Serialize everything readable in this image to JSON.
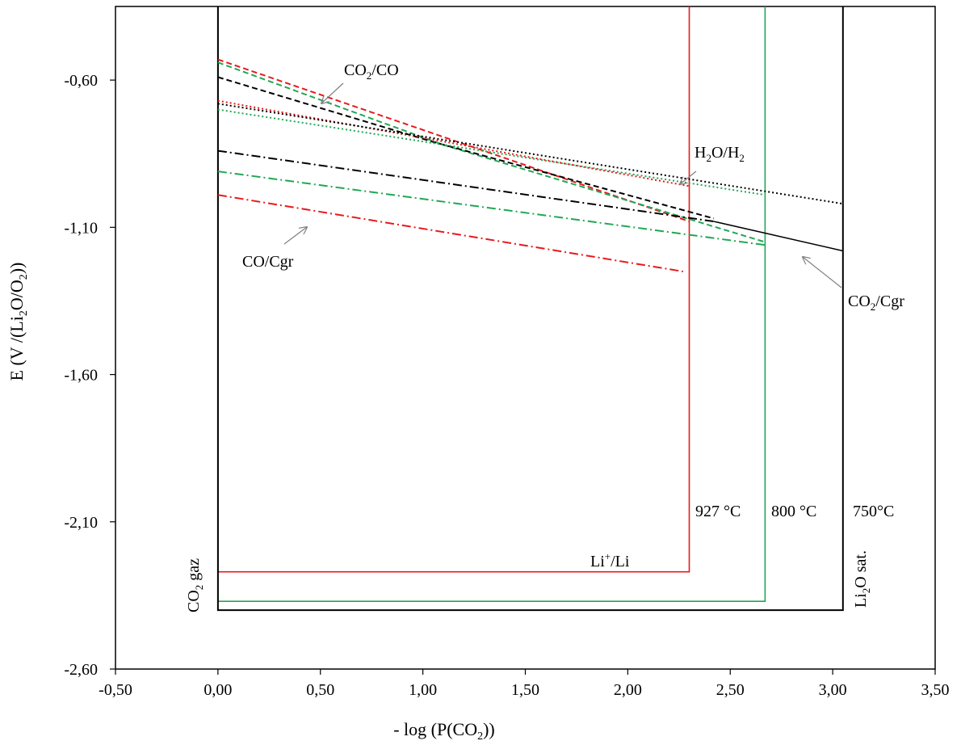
{
  "chart_data": {
    "type": "line",
    "xlabel": {
      "main": "- log (P(CO",
      "sub": "2",
      "tail": "))"
    },
    "ylabel": {
      "p1": "E  (V /(Li",
      "s1": "2",
      "p2": "O/O",
      "s2": "2",
      "p3": "))"
    },
    "xlim": [
      -0.5,
      3.5
    ],
    "ylim": [
      -2.6,
      -0.35
    ],
    "xticks": [
      "-0,50",
      "0,00",
      "0,50",
      "1,00",
      "1,50",
      "2,00",
      "2,50",
      "3,00",
      "3,50"
    ],
    "yticks": [
      "-0,60",
      "-1,10",
      "-1,60",
      "-2,10",
      "-2,60"
    ],
    "colors": {
      "t927": "#e8191c",
      "t800": "#1fa855",
      "t750": "#000000"
    },
    "temperature_labels": {
      "t927": "927 °C",
      "t800": "800 °C",
      "t750": "750°C"
    },
    "regions": [
      {
        "temp": "t927",
        "x": [
          0.0,
          2.3
        ],
        "y_bottom": -2.27
      },
      {
        "temp": "t800",
        "x": [
          0.0,
          2.67
        ],
        "y_bottom": -2.37
      },
      {
        "temp": "t750",
        "x": [
          0.0,
          3.05
        ],
        "y_bottom": -2.4
      }
    ],
    "series": [
      {
        "couple": "CO2/CO",
        "temp": "t927",
        "style": "dash",
        "x": [
          0.0,
          2.3
        ],
        "y": [
          -0.53,
          -1.08
        ]
      },
      {
        "couple": "CO2/CO",
        "temp": "t800",
        "style": "dash",
        "x": [
          0.0,
          1.1,
          2.67
        ],
        "y": [
          -0.54,
          -0.82,
          -1.15
        ]
      },
      {
        "couple": "CO2/CO",
        "temp": "t750",
        "style": "dash",
        "x": [
          0.0,
          1.05,
          2.42
        ],
        "y": [
          -0.59,
          -0.81,
          -1.07
        ]
      },
      {
        "couple": "H2O/H2",
        "temp": "t927",
        "style": "dot",
        "x": [
          0.0,
          2.3
        ],
        "y": [
          -0.67,
          -0.96
        ]
      },
      {
        "couple": "H2O/H2",
        "temp": "t800",
        "style": "dot",
        "x": [
          0.0,
          2.67
        ],
        "y": [
          -0.7,
          -0.99
        ]
      },
      {
        "couple": "H2O/H2",
        "temp": "t750",
        "style": "dot",
        "x": [
          0.0,
          3.05
        ],
        "y": [
          -0.68,
          -1.02
        ]
      },
      {
        "couple": "CO/Cgr",
        "temp": "t927",
        "style": "dashdot",
        "x": [
          0.0,
          2.27
        ],
        "y": [
          -0.99,
          -1.25
        ]
      },
      {
        "couple": "CO/Cgr",
        "temp": "t800",
        "style": "dashdot",
        "x": [
          0.0,
          2.67
        ],
        "y": [
          -0.91,
          -1.16
        ]
      },
      {
        "couple": "CO/Cgr",
        "temp": "t750",
        "style": "dashdot",
        "x": [
          0.0,
          2.42
        ],
        "y": [
          -0.84,
          -1.08
        ]
      },
      {
        "couple": "CO2/Cgr",
        "temp": "t750",
        "style": "solid",
        "x": [
          2.42,
          3.05
        ],
        "y": [
          -1.08,
          -1.18
        ]
      }
    ],
    "annotations": [
      {
        "id": "co2-co",
        "main": "CO",
        "sub": "2",
        "tail": "/CO"
      },
      {
        "id": "h2o-h2",
        "main": "H",
        "sub": "2",
        "mid": "O/H",
        "sub2": "2"
      },
      {
        "id": "co-cgr",
        "main": "CO/Cgr"
      },
      {
        "id": "co2-cgr",
        "main": "CO",
        "sub": "2",
        "tail": "/Cgr"
      },
      {
        "id": "li-li",
        "main": "Li",
        "sup": "+",
        "tail": "/Li"
      },
      {
        "id": "co2-gaz",
        "main": "CO",
        "sub": "2",
        "tail": " gaz"
      },
      {
        "id": "li2o-sat",
        "main": "Li",
        "sub": "2",
        "tail": "O sat."
      }
    ]
  }
}
